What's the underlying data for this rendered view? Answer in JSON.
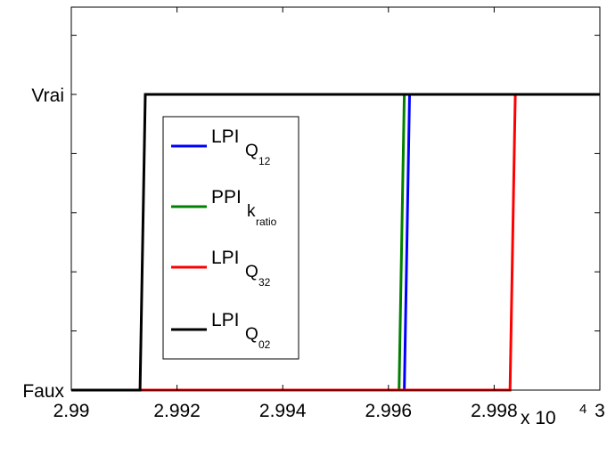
{
  "chart_data": {
    "type": "line",
    "title": "",
    "xlabel": "",
    "ylabel": "",
    "xlim": [
      29900,
      30000
    ],
    "ylim": [
      0,
      1
    ],
    "x_tick_values": [
      29900,
      29920,
      29940,
      29960,
      29980,
      30000
    ],
    "x_tick_labels": [
      "2.99",
      "2.992",
      "2.994",
      "2.996",
      "2.998",
      "3"
    ],
    "x_multiplier_label": "x 10",
    "x_multiplier_exponent": "4",
    "y_tick_values": [
      0,
      1
    ],
    "y_tick_labels": [
      "Faux",
      "Vrai"
    ],
    "grid": false,
    "legend_position": "top-left",
    "series": [
      {
        "name": "LPI_{Q_12}",
        "legend_main": "LPI",
        "legend_sub": "Q",
        "legend_subsub": "12",
        "color": "#0000ff",
        "x": [
          29900,
          29963,
          29964,
          30000
        ],
        "y": [
          0,
          0,
          1,
          1
        ]
      },
      {
        "name": "PPI_{k_ratio}",
        "legend_main": "PPI",
        "legend_sub": "k",
        "legend_subsub": "ratio",
        "color": "#008000",
        "x": [
          29900,
          29962,
          29963,
          30000
        ],
        "y": [
          0,
          0,
          1,
          1
        ]
      },
      {
        "name": "LPI_{Q_32}",
        "legend_main": "LPI",
        "legend_sub": "Q",
        "legend_subsub": "32",
        "color": "#ff0000",
        "x": [
          29900,
          29983,
          29984,
          30000
        ],
        "y": [
          0,
          0,
          1,
          1
        ]
      },
      {
        "name": "LPI_{Q_02}",
        "legend_main": "LPI",
        "legend_sub": "Q",
        "legend_subsub": "02",
        "color": "#000000",
        "x": [
          29900,
          29913,
          29914,
          30000
        ],
        "y": [
          0,
          0,
          1,
          1
        ]
      }
    ]
  }
}
